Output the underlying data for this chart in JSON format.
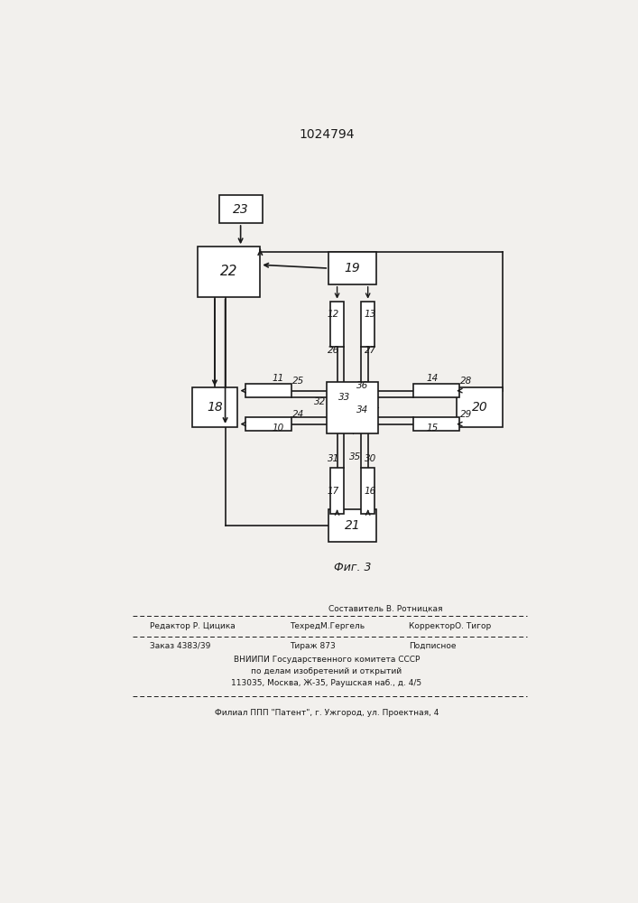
{
  "title": "1024794",
  "bg_color": "#f2f0ed",
  "line_color": "#1a1a1a",
  "box_color": "#ffffff",
  "box_edge": "#1a1a1a",
  "patent_number": "1024794",
  "fig_caption": "Фиг. 3",
  "footer": {
    "line1_left": "Редактор Р. Цицика",
    "line1_mid": "ТехредМ.Гергель",
    "line1_right": "КорректорО. Тигор",
    "line1_top": "Составитель В. Ротницкая",
    "line2_left": "Заказ 4383/39",
    "line2_mid": "Тираж 873",
    "line2_right": "Подписное",
    "line3": "ВНИИПИ Государственного комитета СССР",
    "line4": "по делам изобретений и открытий",
    "line5": "113035, Москва, Ж-35, Раушская наб., д. 4/5",
    "line6": "Филиал ППП \"Патент\", г. Ужгород, ул. Проектная, 4"
  }
}
